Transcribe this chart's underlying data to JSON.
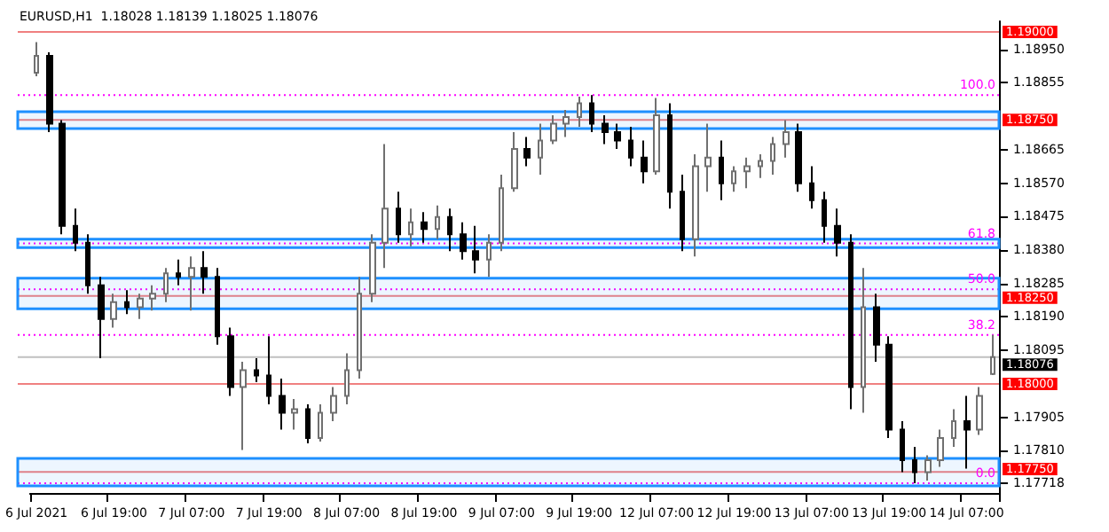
{
  "chart_data": {
    "type": "candlestick",
    "title": "EURUSD,H1  1.18028 1.18139 1.18025 1.18076",
    "categories": [
      "6 Jul 2021",
      null,
      null,
      null,
      null,
      null,
      "6 Jul 19:00",
      null,
      null,
      null,
      null,
      null,
      "7 Jul 07:00",
      null,
      null,
      null,
      null,
      null,
      "7 Jul 19:00",
      null,
      null,
      null,
      null,
      null,
      "8 Jul 07:00",
      null,
      null,
      null,
      null,
      null,
      "8 Jul 19:00",
      null,
      null,
      null,
      null,
      null,
      "9 Jul 07:00",
      null,
      null,
      null,
      null,
      null,
      "9 Jul 19:00",
      null,
      null,
      null,
      null,
      null,
      "12 Jul 07:00",
      null,
      null,
      null,
      null,
      null,
      "12 Jul 19:00",
      null,
      null,
      null,
      null,
      null,
      "13 Jul 07:00",
      null,
      null,
      null,
      null,
      null,
      "13 Jul 19:00",
      null,
      null,
      null,
      null,
      null,
      "14 Jul 07:00",
      null,
      null
    ],
    "ohlc": [
      [
        1.18884,
        1.18971,
        1.18874,
        1.18932
      ],
      [
        1.18932,
        1.18942,
        1.18715,
        1.18739
      ],
      [
        1.18739,
        1.18749,
        1.18425,
        1.18449
      ],
      [
        1.18449,
        1.18498,
        1.18377,
        1.18401
      ],
      [
        1.18401,
        1.18425,
        1.18256,
        1.1828
      ],
      [
        1.1828,
        1.18304,
        1.18073,
        1.18184
      ],
      [
        1.18184,
        1.18256,
        1.1816,
        1.18232
      ],
      [
        1.18232,
        1.18266,
        1.18198,
        1.18218
      ],
      [
        1.18218,
        1.18256,
        1.18184,
        1.18242
      ],
      [
        1.18242,
        1.1828,
        1.18208,
        1.18256
      ],
      [
        1.18256,
        1.18329,
        1.18232,
        1.18314
      ],
      [
        1.18314,
        1.18353,
        1.1828,
        1.18304
      ],
      [
        1.18304,
        1.18362,
        1.18208,
        1.18329
      ],
      [
        1.18329,
        1.18377,
        1.18256,
        1.18304
      ],
      [
        1.18304,
        1.18329,
        1.18111,
        1.18135
      ],
      [
        1.18135,
        1.1816,
        1.17966,
        1.17991
      ],
      [
        1.17991,
        1.18063,
        1.17812,
        1.18039
      ],
      [
        1.18039,
        1.18073,
        1.18005,
        1.18024
      ],
      [
        1.18024,
        1.18135,
        1.17942,
        1.17966
      ],
      [
        1.17966,
        1.18015,
        1.1787,
        1.17918
      ],
      [
        1.17918,
        1.17957,
        1.1787,
        1.17928
      ],
      [
        1.17928,
        1.17942,
        1.17831,
        1.17846
      ],
      [
        1.17846,
        1.17942,
        1.17836,
        1.17918
      ],
      [
        1.17918,
        1.17991,
        1.17894,
        1.17966
      ],
      [
        1.17966,
        1.18087,
        1.17942,
        1.18039
      ],
      [
        1.18039,
        1.18304,
        1.18015,
        1.18256
      ],
      [
        1.18256,
        1.18425,
        1.18232,
        1.18401
      ],
      [
        1.18401,
        1.18681,
        1.18329,
        1.18498
      ],
      [
        1.18498,
        1.18546,
        1.18401,
        1.18425
      ],
      [
        1.18425,
        1.18498,
        1.18391,
        1.18459
      ],
      [
        1.18459,
        1.18488,
        1.18401,
        1.1844
      ],
      [
        1.1844,
        1.18507,
        1.18411,
        1.18474
      ],
      [
        1.18474,
        1.18498,
        1.18377,
        1.18425
      ],
      [
        1.18425,
        1.18459,
        1.18353,
        1.18377
      ],
      [
        1.18377,
        1.18449,
        1.18314,
        1.18353
      ],
      [
        1.18353,
        1.18425,
        1.18304,
        1.18401
      ],
      [
        1.18401,
        1.18594,
        1.18377,
        1.18556
      ],
      [
        1.18556,
        1.18715,
        1.18546,
        1.18667
      ],
      [
        1.18667,
        1.18701,
        1.18618,
        1.18643
      ],
      [
        1.18643,
        1.18739,
        1.18594,
        1.18691
      ],
      [
        1.18691,
        1.18763,
        1.18681,
        1.18739
      ],
      [
        1.18739,
        1.18778,
        1.18701,
        1.18758
      ],
      [
        1.18758,
        1.18816,
        1.1873,
        1.18797
      ],
      [
        1.18797,
        1.1882,
        1.18715,
        1.18739
      ],
      [
        1.18739,
        1.18763,
        1.18681,
        1.18715
      ],
      [
        1.18715,
        1.18739,
        1.18667,
        1.18691
      ],
      [
        1.18691,
        1.1873,
        1.18618,
        1.18643
      ],
      [
        1.18643,
        1.18691,
        1.1857,
        1.18604
      ],
      [
        1.18604,
        1.18812,
        1.18594,
        1.18763
      ],
      [
        1.18763,
        1.18797,
        1.18498,
        1.18546
      ],
      [
        1.18546,
        1.18594,
        1.18377,
        1.18411
      ],
      [
        1.18411,
        1.18652,
        1.18362,
        1.18618
      ],
      [
        1.18618,
        1.18739,
        1.18546,
        1.18643
      ],
      [
        1.18643,
        1.18691,
        1.18522,
        1.1857
      ],
      [
        1.1857,
        1.18618,
        1.18546,
        1.18604
      ],
      [
        1.18604,
        1.18643,
        1.18556,
        1.18618
      ],
      [
        1.18618,
        1.18652,
        1.18585,
        1.18633
      ],
      [
        1.18633,
        1.18701,
        1.18594,
        1.18681
      ],
      [
        1.18681,
        1.18749,
        1.18643,
        1.18715
      ],
      [
        1.18715,
        1.18739,
        1.18546,
        1.1857
      ],
      [
        1.1857,
        1.18618,
        1.18498,
        1.18522
      ],
      [
        1.18522,
        1.18546,
        1.18401,
        1.18449
      ],
      [
        1.18449,
        1.18498,
        1.18362,
        1.18401
      ],
      [
        1.18401,
        1.18425,
        1.17928,
        1.17991
      ],
      [
        1.17991,
        1.18329,
        1.17918,
        1.18218
      ],
      [
        1.18218,
        1.18256,
        1.18063,
        1.18111
      ],
      [
        1.18111,
        1.18135,
        1.17846,
        1.1787
      ],
      [
        1.1787,
        1.17894,
        1.17749,
        1.17783
      ],
      [
        1.17783,
        1.17821,
        1.17718,
        1.17749
      ],
      [
        1.17749,
        1.17797,
        1.17725,
        1.17783
      ],
      [
        1.17783,
        1.1787,
        1.17764,
        1.17846
      ],
      [
        1.17846,
        1.17928,
        1.17821,
        1.17894
      ],
      [
        1.17894,
        1.17966,
        1.17759,
        1.1787
      ],
      [
        1.1787,
        1.17991,
        1.17855,
        1.17966
      ],
      [
        1.18028,
        1.18139,
        1.18025,
        1.18076
      ]
    ],
    "ylim": [
      1.1769,
      1.1903
    ],
    "yticks": [
      {
        "value": 1.1895,
        "label": "1.18950"
      },
      {
        "value": 1.18855,
        "label": "1.18855"
      },
      {
        "value": 1.18665,
        "label": "1.18665"
      },
      {
        "value": 1.1857,
        "label": "1.18570"
      },
      {
        "value": 1.18475,
        "label": "1.18475"
      },
      {
        "value": 1.1838,
        "label": "1.18380"
      },
      {
        "value": 1.18285,
        "label": "1.18285"
      },
      {
        "value": 1.1819,
        "label": "1.18190"
      },
      {
        "value": 1.18095,
        "label": "1.18095"
      },
      {
        "value": 1.17905,
        "label": "1.17905"
      },
      {
        "value": 1.1781,
        "label": "1.17810"
      },
      {
        "value": 1.17718,
        "label": "1.17718"
      }
    ],
    "ref_lines": [
      {
        "axis": "y",
        "value": 1.19,
        "label": "1.19000",
        "color": "#f08080",
        "line_style": "solid"
      },
      {
        "axis": "y",
        "value": 1.1875,
        "label": "1.18750",
        "color": "#f08080",
        "line_style": "solid"
      },
      {
        "axis": "y",
        "value": 1.1825,
        "label": "1.18250",
        "color": "#f08080",
        "line_style": "solid"
      },
      {
        "axis": "y",
        "value": 1.18,
        "label": "1.18000",
        "color": "#f08080",
        "line_style": "solid"
      },
      {
        "axis": "y",
        "value": 1.1775,
        "label": "1.17750",
        "color": "#f08080",
        "line_style": "solid"
      },
      {
        "axis": "y",
        "value": 1.18076,
        "label": "1.18076",
        "color": "#c0c0c0",
        "line_style": "solid"
      },
      {
        "axis": "y",
        "value": 1.1882,
        "color": "#ff00ff",
        "line_style": "dotted"
      },
      {
        "axis": "y",
        "value": 1.18399,
        "color": "#ff00ff",
        "line_style": "dotted"
      },
      {
        "axis": "y",
        "value": 1.18269,
        "color": "#ff00ff",
        "line_style": "dotted"
      },
      {
        "axis": "y",
        "value": 1.18139,
        "color": "#ff00ff",
        "line_style": "dotted"
      },
      {
        "axis": "y",
        "value": 1.17718,
        "color": "#ff00ff",
        "line_style": "dotted"
      }
    ],
    "annotations": [
      {
        "text": "100.0",
        "y": 1.1882
      },
      {
        "text": "61.8",
        "y": 1.18399
      },
      {
        "text": "50.0",
        "y": 1.18269
      },
      {
        "text": "38.2",
        "y": 1.18139
      },
      {
        "text": "0.0",
        "y": 1.17718
      }
    ],
    "bands": [
      {
        "axis": "y",
        "from": 1.18725,
        "to": 1.18773,
        "color": "#1e90ff"
      },
      {
        "axis": "y",
        "from": 1.18387,
        "to": 1.18411,
        "color": "#1e90ff"
      },
      {
        "axis": "y",
        "from": 1.18213,
        "to": 1.183,
        "color": "#1e90ff"
      },
      {
        "axis": "y",
        "from": 1.1771,
        "to": 1.17788,
        "color": "#1e90ff"
      }
    ],
    "grid": false
  }
}
